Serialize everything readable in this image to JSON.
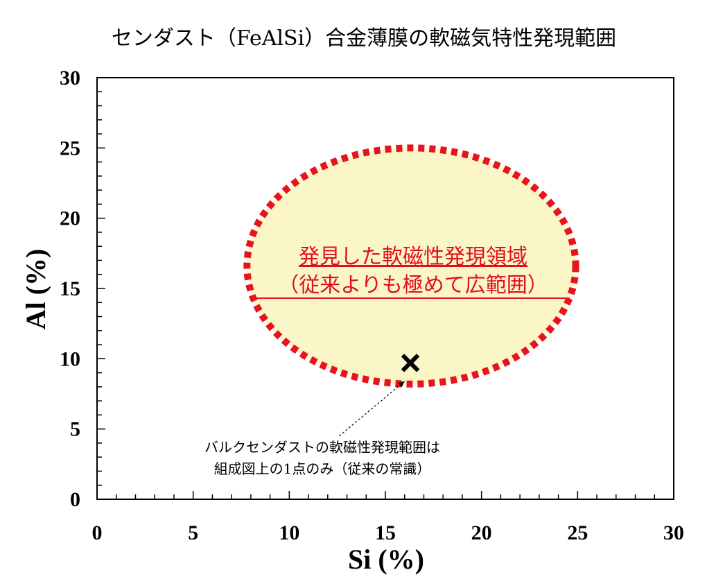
{
  "chart_data": {
    "type": "scatter",
    "title": "センダスト（FeAlSi）合金薄膜の軟磁気特性発現範囲",
    "xlabel": "Si (%)",
    "ylabel": "Al (%)",
    "xlim": [
      0,
      30
    ],
    "ylim": [
      0,
      30
    ],
    "xticks": [
      0,
      5,
      10,
      15,
      20,
      25,
      30
    ],
    "yticks": [
      0,
      5,
      10,
      15,
      20,
      25,
      30
    ],
    "x_minor_step": 1,
    "y_minor_step": 1,
    "grid": false,
    "points": [
      {
        "x": 16.3,
        "y": 9.7,
        "marker": "cross"
      }
    ],
    "region": {
      "shape": "ellipse",
      "x_range": [
        7.8,
        24.9
      ],
      "y_range": [
        8.2,
        25.0
      ],
      "fill": "#fbf6c8",
      "stroke": "#e8141c",
      "line1": "発見した軟磁性発現領域",
      "line2": "（従来よりも極めて広範囲）"
    },
    "annotation": {
      "line1": "バルクセンダストの軟磁性発現範囲は",
      "line2": "組成図上の1点のみ（従来の常識）",
      "arrow_from": {
        "x": 12.6,
        "y": 4.5
      },
      "arrow_to": {
        "x": 16.0,
        "y": 8.4
      }
    }
  }
}
